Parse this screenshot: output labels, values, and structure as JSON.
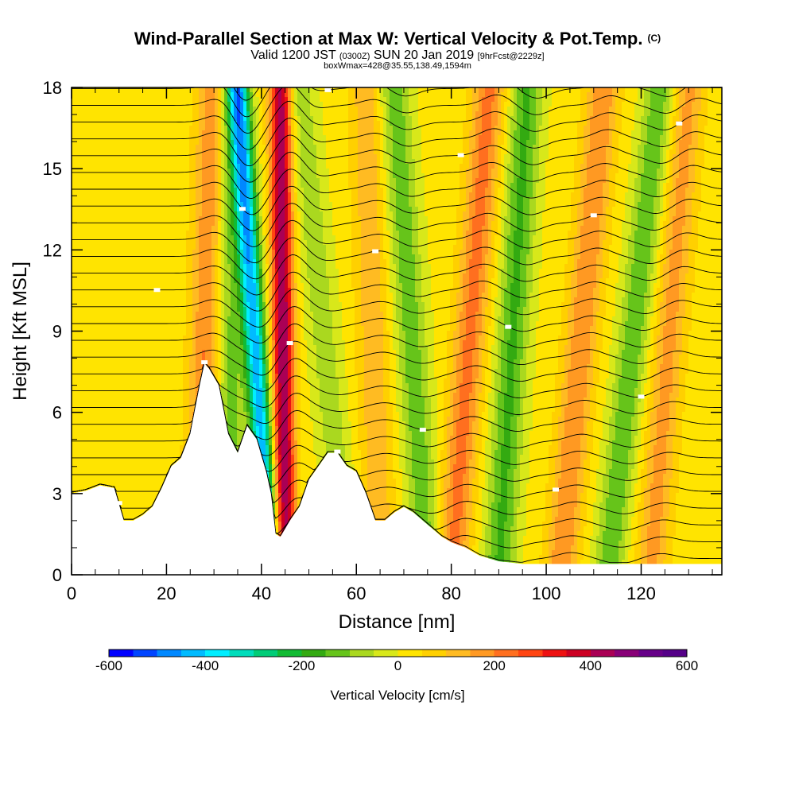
{
  "title": {
    "main": "Wind-Parallel Section at Max W: Vertical Velocity & Pot.Temp.",
    "copyright": "(C)",
    "valid_prefix": "Valid 1200 JST",
    "valid_utc": "(0300Z)",
    "valid_date": "SUN 20 Jan 2019",
    "forecast": "[9hrFcst@2229z]",
    "box_info": "boxWmax=428@35.55,138.49,1594m"
  },
  "chart_data": {
    "type": "heatmap",
    "xlabel": "Distance [nm]",
    "ylabel": "Height [Kft MSL]",
    "xlim": [
      0,
      137
    ],
    "ylim": [
      0,
      18
    ],
    "x_ticks": [
      0,
      20,
      40,
      60,
      80,
      100,
      120
    ],
    "y_ticks": [
      0,
      3,
      6,
      9,
      12,
      15,
      18
    ],
    "colorbar": {
      "title": "Vertical Velocity [cm/s]",
      "ticks": [
        -600,
        -400,
        -200,
        0,
        200,
        400,
        600
      ],
      "colors": [
        "#0000ff",
        "#0044ff",
        "#0088ff",
        "#00bbff",
        "#00eeff",
        "#00ddbb",
        "#00cc77",
        "#11bb33",
        "#33aa11",
        "#66c41a",
        "#aad81f",
        "#d8e81a",
        "#ffe400",
        "#ffd000",
        "#ffbb22",
        "#ff9922",
        "#ff6f1f",
        "#ff4411",
        "#ee1111",
        "#cc0022",
        "#aa0055",
        "#880077",
        "#660088",
        "#550088"
      ]
    },
    "terrain_kft": [
      [
        0,
        3.0
      ],
      [
        3,
        3.1
      ],
      [
        6,
        3.3
      ],
      [
        9,
        3.2
      ],
      [
        11,
        2.0
      ],
      [
        13,
        2.0
      ],
      [
        15,
        2.2
      ],
      [
        17,
        2.5
      ],
      [
        19,
        3.2
      ],
      [
        21,
        4.0
      ],
      [
        23,
        4.3
      ],
      [
        25,
        5.2
      ],
      [
        27,
        7.0
      ],
      [
        28,
        7.8
      ],
      [
        29,
        7.6
      ],
      [
        31,
        7.0
      ],
      [
        33,
        5.2
      ],
      [
        35,
        4.5
      ],
      [
        37,
        5.5
      ],
      [
        39,
        5.0
      ],
      [
        41,
        3.8
      ],
      [
        42,
        3.0
      ],
      [
        43,
        1.5
      ],
      [
        44,
        1.4
      ],
      [
        46,
        2.0
      ],
      [
        48,
        2.5
      ],
      [
        50,
        3.5
      ],
      [
        52,
        4.0
      ],
      [
        54,
        4.5
      ],
      [
        56,
        4.5
      ],
      [
        58,
        4.0
      ],
      [
        60,
        3.8
      ],
      [
        62,
        3.0
      ],
      [
        64,
        2.0
      ],
      [
        66,
        2.0
      ],
      [
        68,
        2.3
      ],
      [
        70,
        2.5
      ],
      [
        72,
        2.3
      ],
      [
        74,
        2.0
      ],
      [
        76,
        1.7
      ],
      [
        78,
        1.4
      ],
      [
        80,
        1.2
      ],
      [
        83,
        1.0
      ],
      [
        86,
        0.7
      ],
      [
        90,
        0.5
      ],
      [
        95,
        0.4
      ],
      [
        137,
        0.4
      ]
    ],
    "velocity_features": [
      {
        "x_bottom": 27,
        "x_top": 30,
        "peak": 200
      },
      {
        "x_bottom": 33,
        "x_top": 33,
        "peak": -150
      },
      {
        "x_bottom": 42,
        "x_top": 35,
        "peak": -450
      },
      {
        "x_bottom": 45,
        "x_top": 44,
        "peak": 428
      },
      {
        "x_bottom": 58,
        "x_top": 48,
        "peak": -100
      },
      {
        "x_bottom": 65,
        "x_top": 62,
        "peak": 120
      },
      {
        "x_bottom": 75,
        "x_top": 68,
        "peak": -150
      },
      {
        "x_bottom": 80,
        "x_top": 88,
        "peak": 200
      },
      {
        "x_bottom": 90,
        "x_top": 96,
        "peak": -180
      },
      {
        "x_bottom": 103,
        "x_top": 112,
        "peak": 180
      },
      {
        "x_bottom": 113,
        "x_top": 124,
        "peak": -160
      },
      {
        "x_bottom": 122,
        "x_top": 130,
        "peak": 150
      }
    ]
  }
}
